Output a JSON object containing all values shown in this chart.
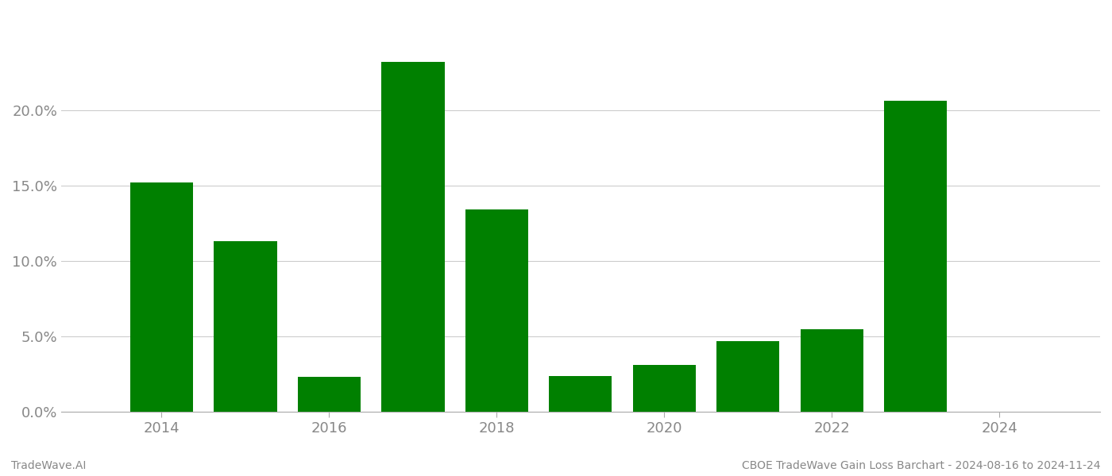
{
  "years": [
    2014,
    2015,
    2016,
    2017,
    2018,
    2019,
    2020,
    2021,
    2022,
    2023,
    2024
  ],
  "values": [
    0.152,
    0.113,
    0.023,
    0.232,
    0.134,
    0.024,
    0.031,
    0.047,
    0.055,
    0.206,
    0.0
  ],
  "bar_color": "#008000",
  "background_color": "#ffffff",
  "grid_color": "#cccccc",
  "ylim": [
    0,
    0.265
  ],
  "yticks": [
    0.0,
    0.05,
    0.1,
    0.15,
    0.2
  ],
  "xtick_labels": [
    "2014",
    "2016",
    "2018",
    "2020",
    "2022",
    "2024"
  ],
  "xtick_positions": [
    2014,
    2016,
    2018,
    2020,
    2022,
    2024
  ],
  "bottom_left_text": "TradeWave.AI",
  "bottom_right_text": "CBOE TradeWave Gain Loss Barchart - 2024-08-16 to 2024-11-24",
  "tick_fontsize": 13,
  "annotation_fontsize": 10,
  "bar_width": 0.75,
  "xlim_left": 2012.8,
  "xlim_right": 2025.2
}
